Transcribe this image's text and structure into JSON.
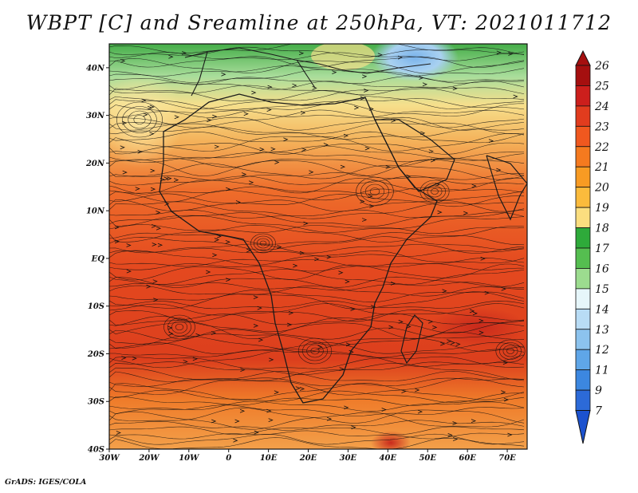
{
  "title": "WBPT [C] and Sreamline at 250hPa, VT: 2021011712",
  "credit": "GrADS: IGES/COLA",
  "map": {
    "lon_range": [
      -30,
      75
    ],
    "lat_range": [
      -40,
      45
    ],
    "x_ticks": [
      "30W",
      "20W",
      "10W",
      "0",
      "10E",
      "20E",
      "30E",
      "40E",
      "50E",
      "60E",
      "70E"
    ],
    "y_ticks": [
      "40N",
      "30N",
      "20N",
      "10N",
      "EQ",
      "10S",
      "20S",
      "30S",
      "40S"
    ],
    "field_colors": {
      "north": "#46b04c",
      "light_green": "#a6dc9a",
      "yellow": "#f7e08e",
      "orange": "#f3a54a",
      "red_orange": "#ec5a28",
      "deep_red": "#d8391e",
      "blue": "#8cc0ec"
    }
  },
  "colorbar": {
    "labels": [
      "26",
      "25",
      "24",
      "23",
      "22",
      "21",
      "20",
      "19",
      "18",
      "17",
      "16",
      "15",
      "14",
      "13",
      "12",
      "11",
      "9",
      "7"
    ],
    "colors": [
      "#a50f0f",
      "#cc1f1c",
      "#e13c1e",
      "#f0581f",
      "#f57a1f",
      "#f89b23",
      "#fbbb3c",
      "#fbde7f",
      "#2eaa3a",
      "#55be50",
      "#9cdc8f",
      "#e6f6fa",
      "#b8dcf5",
      "#8cc3ee",
      "#5fa6e8",
      "#3c87e0",
      "#2c6ad8",
      "#1c52cf"
    ]
  }
}
